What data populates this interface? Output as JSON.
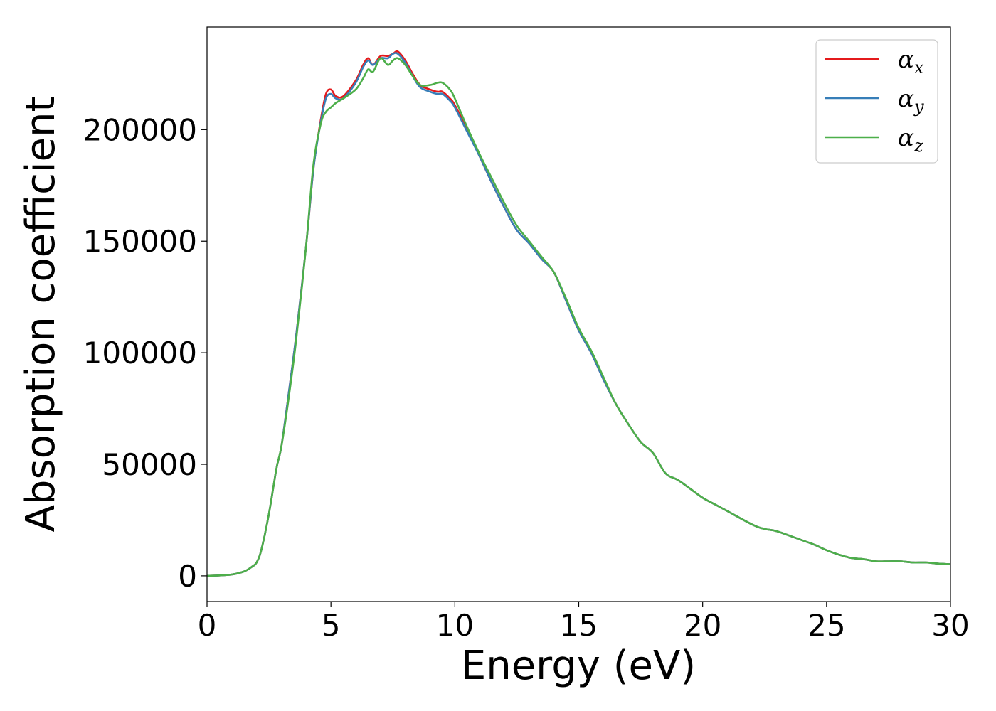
{
  "chart_data": {
    "type": "line",
    "xlabel": "Energy (eV)",
    "ylabel": "Absorption coefficient",
    "xlim": [
      0,
      30
    ],
    "ylim": [
      -11500,
      246000
    ],
    "xticks": [
      0,
      5,
      10,
      15,
      20,
      25,
      30
    ],
    "yticks": [
      0,
      50000,
      100000,
      150000,
      200000
    ],
    "grid": false,
    "legend_position": "top-right",
    "x": [
      0,
      0.5,
      1.0,
      1.5,
      1.8,
      2.0,
      2.2,
      2.5,
      2.8,
      3.0,
      3.3,
      3.6,
      4.0,
      4.3,
      4.6,
      4.8,
      5.0,
      5.2,
      5.5,
      6.0,
      6.3,
      6.5,
      6.7,
      7.0,
      7.3,
      7.5,
      7.7,
      8.0,
      8.3,
      8.6,
      9.0,
      9.3,
      9.5,
      9.8,
      10.0,
      10.5,
      11.0,
      11.5,
      12.0,
      12.5,
      13.0,
      13.5,
      14.0,
      14.5,
      15.0,
      15.5,
      16.0,
      16.5,
      17.0,
      17.5,
      18.0,
      18.5,
      19.0,
      19.5,
      20.0,
      20.5,
      21.0,
      22.0,
      22.5,
      23.0,
      24.0,
      24.5,
      25.0,
      25.5,
      26.0,
      26.5,
      27.0,
      27.5,
      28.0,
      28.5,
      29.0,
      29.5,
      30.0
    ],
    "series": [
      {
        "name": "α_x",
        "color": "#e41a1c",
        "values": [
          0,
          200,
          600,
          2000,
          4000,
          6000,
          12000,
          28000,
          48000,
          58000,
          82000,
          108000,
          148000,
          183000,
          205000,
          216000,
          218000,
          215000,
          215000,
          222000,
          229000,
          232000,
          229000,
          233000,
          233000,
          234000,
          235000,
          231000,
          225000,
          220000,
          218000,
          217000,
          217000,
          214000,
          211000,
          200000,
          188000,
          176000,
          165000,
          155000,
          149000,
          142000,
          136000,
          123000,
          110000,
          100000,
          88000,
          77000,
          68000,
          60000,
          55000,
          46000,
          43000,
          39000,
          35000,
          32000,
          29000,
          23000,
          21000,
          20000,
          16000,
          14000,
          11500,
          9500,
          8000,
          7500,
          6500,
          6500,
          6500,
          6000,
          6000,
          5500,
          5200
        ]
      },
      {
        "name": "α_y",
        "color": "#377eb8",
        "values": [
          0,
          200,
          600,
          2000,
          4000,
          6000,
          12000,
          28000,
          48000,
          58000,
          82000,
          108000,
          148000,
          183000,
          204000,
          214000,
          216000,
          214000,
          214000,
          221000,
          228000,
          231000,
          229000,
          232000,
          232000,
          234000,
          234000,
          230000,
          224000,
          219000,
          217000,
          216000,
          216000,
          213000,
          210000,
          199000,
          188000,
          176000,
          165000,
          155000,
          149000,
          142000,
          136000,
          123000,
          110000,
          100000,
          88000,
          77000,
          68000,
          60000,
          55000,
          46000,
          43000,
          39000,
          35000,
          32000,
          29000,
          23000,
          21000,
          20000,
          16000,
          14000,
          11500,
          9500,
          8000,
          7500,
          6500,
          6500,
          6500,
          6000,
          6000,
          5500,
          5200
        ]
      },
      {
        "name": "α_z",
        "color": "#4daf4a",
        "values": [
          0,
          200,
          600,
          2000,
          4000,
          6000,
          12000,
          28000,
          48000,
          58000,
          80000,
          106000,
          148000,
          185000,
          203000,
          208000,
          210000,
          212000,
          214000,
          218000,
          223000,
          227000,
          226000,
          232000,
          229000,
          231000,
          232000,
          229000,
          224000,
          220000,
          220000,
          221000,
          221000,
          218000,
          214000,
          201000,
          189000,
          178000,
          167000,
          157000,
          150000,
          143000,
          136000,
          124000,
          111000,
          101000,
          89000,
          77000,
          68000,
          60000,
          55000,
          46000,
          43000,
          39000,
          35000,
          32000,
          29000,
          23000,
          21000,
          20000,
          16000,
          14000,
          11500,
          9500,
          8000,
          7500,
          6500,
          6500,
          6500,
          6000,
          6000,
          5500,
          5200
        ]
      }
    ]
  },
  "legend": {
    "items": [
      {
        "base": "α",
        "sub": "x"
      },
      {
        "base": "α",
        "sub": "y"
      },
      {
        "base": "α",
        "sub": "z"
      }
    ]
  }
}
